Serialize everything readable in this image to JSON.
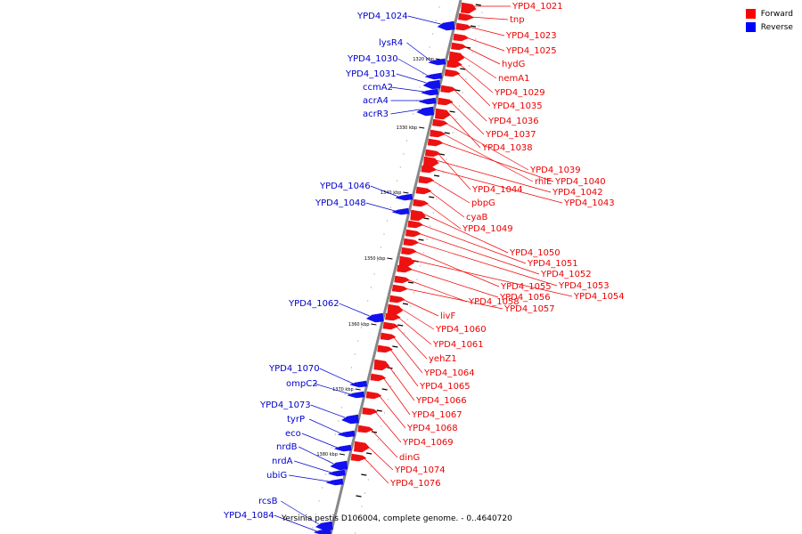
{
  "caption": "Yersinia pestis D106004, complete genome. - 0..4640720",
  "legend": [
    {
      "label": "Forward",
      "color": "#ff0000"
    },
    {
      "label": "Reverse",
      "color": "#0000ff"
    }
  ],
  "colors": {
    "forward": "#ee1111",
    "reverse": "#1111ee",
    "backbone": "#888888"
  },
  "ticks": [
    "1320 kbp",
    "1330 kbp",
    "1340 kbp",
    "1350 kbp",
    "1360 kbp",
    "1370 kbp",
    "1380 kbp"
  ],
  "forward_labels": [
    "YPD4_1021",
    "tnp",
    "YPD4_1023",
    "YPD4_1025",
    "hydG",
    "nemA1",
    "YPD4_1029",
    "YPD4_1035",
    "YPD4_1036",
    "YPD4_1037",
    "YPD4_1038",
    "YPD4_1039",
    "rhlE",
    "YPD4_1040",
    "YPD4_1044",
    "YPD4_1042",
    "YPD4_1043",
    "pbpG",
    "cyaB",
    "YPD4_1049",
    "YPD4_1050",
    "YPD4_1051",
    "YPD4_1052",
    "YPD4_1053",
    "YPD4_1055",
    "YPD4_1054",
    "YPD4_1056",
    "YPD4_1058",
    "YPD4_1057",
    "livF",
    "YPD4_1060",
    "YPD4_1061",
    "yehZ1",
    "YPD4_1064",
    "YPD4_1065",
    "YPD4_1066",
    "YPD4_1067",
    "YPD4_1068",
    "YPD4_1069",
    "dinG",
    "YPD4_1074",
    "YPD4_1076"
  ],
  "reverse_labels": [
    "YPD4_1024",
    "lysR4",
    "YPD4_1030",
    "YPD4_1031",
    "ccmA2",
    "acrA4",
    "acrR3",
    "YPD4_1046",
    "YPD4_1048",
    "YPD4_1062",
    "YPD4_1070",
    "ompC2",
    "YPD4_1073",
    "tyrP",
    "eco",
    "nrdB",
    "nrdA",
    "ubiG",
    "rcsB",
    "YPD4_1084"
  ]
}
